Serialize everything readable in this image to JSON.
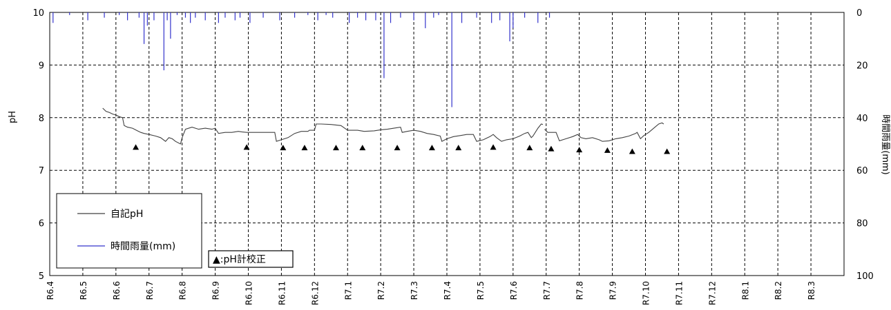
{
  "chart_data": {
    "type": "line",
    "ylabel_left": "pH",
    "ylabel_right": "時間雨量(mm)",
    "ylim_left": [
      5,
      10
    ],
    "yticks_left": [
      5,
      6,
      7,
      8,
      9,
      10
    ],
    "ylim_right_inverted": [
      0,
      100
    ],
    "yticks_right": [
      0,
      20,
      40,
      60,
      80,
      100
    ],
    "x_tick_labels": [
      "R6.4",
      "R6.5",
      "R6.6",
      "R6.7",
      "R6.8",
      "R6.9",
      "R6.10",
      "R6.11",
      "R6.12",
      "R7.1",
      "R7.2",
      "R7.3",
      "R7.4",
      "R7.5",
      "R7.6",
      "R7.7",
      "R7.8",
      "R7.9",
      "R7.10",
      "R7.11",
      "R7.12",
      "R8.1",
      "R8.2",
      "R8.3"
    ],
    "grid": true,
    "legend_position": "bottom-left",
    "legend": [
      {
        "label": "自記pH",
        "color": "#404040"
      },
      {
        "label": "時間雨量(mm)",
        "color": "#3333cc"
      }
    ],
    "annotation": "▲：pH計校正",
    "series": [
      {
        "name": "自記pH",
        "color": "#404040",
        "points": [
          [
            1.6,
            8.18
          ],
          [
            1.7,
            8.12
          ],
          [
            1.8,
            8.1
          ],
          [
            1.9,
            8.07
          ],
          [
            2.0,
            8.05
          ],
          [
            2.1,
            8.02
          ],
          [
            2.2,
            8.0
          ],
          [
            2.25,
            7.85
          ],
          [
            2.35,
            7.82
          ],
          [
            2.5,
            7.8
          ],
          [
            2.65,
            7.75
          ],
          [
            2.75,
            7.72
          ],
          [
            2.85,
            7.7
          ],
          [
            3.0,
            7.68
          ],
          [
            3.2,
            7.65
          ],
          [
            3.35,
            7.62
          ],
          [
            3.5,
            7.55
          ],
          [
            3.6,
            7.62
          ],
          [
            3.7,
            7.6
          ],
          [
            3.8,
            7.55
          ],
          [
            3.95,
            7.5
          ],
          [
            4.0,
            7.62
          ],
          [
            4.1,
            7.78
          ],
          [
            4.3,
            7.82
          ],
          [
            4.5,
            7.78
          ],
          [
            4.7,
            7.8
          ],
          [
            4.9,
            7.78
          ],
          [
            5.0,
            7.8
          ],
          [
            5.1,
            7.7
          ],
          [
            5.3,
            7.72
          ],
          [
            5.5,
            7.72
          ],
          [
            5.7,
            7.74
          ],
          [
            5.8,
            7.73
          ],
          [
            5.95,
            7.72
          ],
          [
            6.0,
            7.72
          ],
          [
            6.3,
            7.72
          ],
          [
            6.6,
            7.72
          ],
          [
            6.8,
            7.72
          ],
          [
            6.85,
            7.55
          ],
          [
            7.0,
            7.58
          ],
          [
            7.2,
            7.62
          ],
          [
            7.4,
            7.7
          ],
          [
            7.6,
            7.74
          ],
          [
            7.8,
            7.74
          ],
          [
            7.85,
            7.76
          ],
          [
            8.0,
            7.76
          ],
          [
            8.05,
            7.88
          ],
          [
            8.2,
            7.88
          ],
          [
            8.5,
            7.87
          ],
          [
            8.8,
            7.85
          ],
          [
            9.0,
            7.76
          ],
          [
            9.3,
            7.76
          ],
          [
            9.5,
            7.74
          ],
          [
            9.8,
            7.75
          ],
          [
            10.0,
            7.77
          ],
          [
            10.2,
            7.78
          ],
          [
            10.4,
            7.8
          ],
          [
            10.6,
            7.82
          ],
          [
            10.65,
            7.72
          ],
          [
            10.8,
            7.74
          ],
          [
            11.0,
            7.76
          ],
          [
            11.2,
            7.74
          ],
          [
            11.4,
            7.7
          ],
          [
            11.6,
            7.68
          ],
          [
            11.8,
            7.65
          ],
          [
            11.85,
            7.55
          ],
          [
            12.0,
            7.6
          ],
          [
            12.2,
            7.64
          ],
          [
            12.4,
            7.66
          ],
          [
            12.6,
            7.68
          ],
          [
            12.8,
            7.68
          ],
          [
            12.9,
            7.55
          ],
          [
            13.1,
            7.58
          ],
          [
            13.3,
            7.64
          ],
          [
            13.4,
            7.68
          ],
          [
            13.5,
            7.62
          ],
          [
            13.65,
            7.55
          ],
          [
            13.8,
            7.58
          ],
          [
            14.0,
            7.6
          ],
          [
            14.2,
            7.65
          ],
          [
            14.35,
            7.7
          ],
          [
            14.45,
            7.72
          ],
          [
            14.55,
            7.62
          ],
          [
            14.6,
            7.65
          ],
          [
            14.75,
            7.8
          ],
          [
            14.85,
            7.88
          ],
          [
            14.9,
            7.87
          ]
        ]
      }
    ],
    "rain_spikes": [
      [
        0.1,
        4
      ],
      [
        0.6,
        1
      ],
      [
        1.15,
        3
      ],
      [
        1.65,
        2
      ],
      [
        2.1,
        1
      ],
      [
        2.35,
        3
      ],
      [
        2.7,
        2
      ],
      [
        2.85,
        12
      ],
      [
        2.95,
        5
      ],
      [
        3.15,
        3
      ],
      [
        3.45,
        22
      ],
      [
        3.55,
        3
      ],
      [
        3.65,
        10
      ],
      [
        3.85,
        1
      ],
      [
        4.1,
        2
      ],
      [
        4.25,
        4
      ],
      [
        4.4,
        2
      ],
      [
        4.7,
        3
      ],
      [
        5.1,
        4
      ],
      [
        5.3,
        2
      ],
      [
        5.6,
        3
      ],
      [
        5.75,
        2
      ],
      [
        6.05,
        4
      ],
      [
        6.45,
        2
      ],
      [
        6.95,
        3
      ],
      [
        7.4,
        2
      ],
      [
        7.8,
        1
      ],
      [
        8.1,
        3
      ],
      [
        8.35,
        1
      ],
      [
        8.55,
        2
      ],
      [
        9.05,
        4
      ],
      [
        9.3,
        2
      ],
      [
        9.55,
        3
      ],
      [
        9.85,
        3
      ],
      [
        10.1,
        25
      ],
      [
        10.3,
        4
      ],
      [
        10.6,
        2
      ],
      [
        11.0,
        3
      ],
      [
        11.35,
        6
      ],
      [
        11.6,
        2
      ],
      [
        11.75,
        1
      ],
      [
        12.15,
        36
      ],
      [
        12.45,
        4
      ],
      [
        12.9,
        2
      ],
      [
        13.35,
        4
      ],
      [
        13.6,
        3
      ],
      [
        13.9,
        11
      ],
      [
        14.0,
        6
      ],
      [
        14.35,
        2
      ],
      [
        14.75,
        4
      ],
      [
        15.1,
        2
      ]
    ],
    "calibration_markers": [
      [
        2.6,
        7.43
      ],
      [
        5.95,
        7.43
      ],
      [
        7.05,
        7.42
      ],
      [
        7.7,
        7.42
      ],
      [
        8.65,
        7.42
      ],
      [
        9.45,
        7.42
      ],
      [
        10.5,
        7.42
      ],
      [
        11.55,
        7.42
      ],
      [
        12.35,
        7.42
      ],
      [
        13.4,
        7.43
      ],
      [
        14.5,
        7.42
      ],
      [
        15.15,
        7.4
      ],
      [
        16.0,
        7.38
      ],
      [
        16.85,
        7.37
      ],
      [
        17.6,
        7.35
      ],
      [
        18.65,
        7.35
      ]
    ],
    "series_late": [
      [
        14.95,
        7.78
      ],
      [
        15.05,
        7.72
      ],
      [
        15.3,
        7.72
      ],
      [
        15.4,
        7.56
      ],
      [
        15.6,
        7.6
      ],
      [
        15.8,
        7.64
      ],
      [
        15.95,
        7.68
      ],
      [
        16.05,
        7.62
      ],
      [
        16.2,
        7.6
      ],
      [
        16.4,
        7.62
      ],
      [
        16.6,
        7.58
      ],
      [
        16.7,
        7.55
      ],
      [
        16.9,
        7.56
      ],
      [
        17.1,
        7.6
      ],
      [
        17.3,
        7.62
      ],
      [
        17.5,
        7.65
      ],
      [
        17.7,
        7.7
      ],
      [
        17.75,
        7.72
      ],
      [
        17.85,
        7.6
      ],
      [
        17.95,
        7.66
      ],
      [
        18.1,
        7.72
      ],
      [
        18.25,
        7.8
      ],
      [
        18.4,
        7.88
      ],
      [
        18.5,
        7.9
      ],
      [
        18.55,
        7.88
      ]
    ]
  }
}
